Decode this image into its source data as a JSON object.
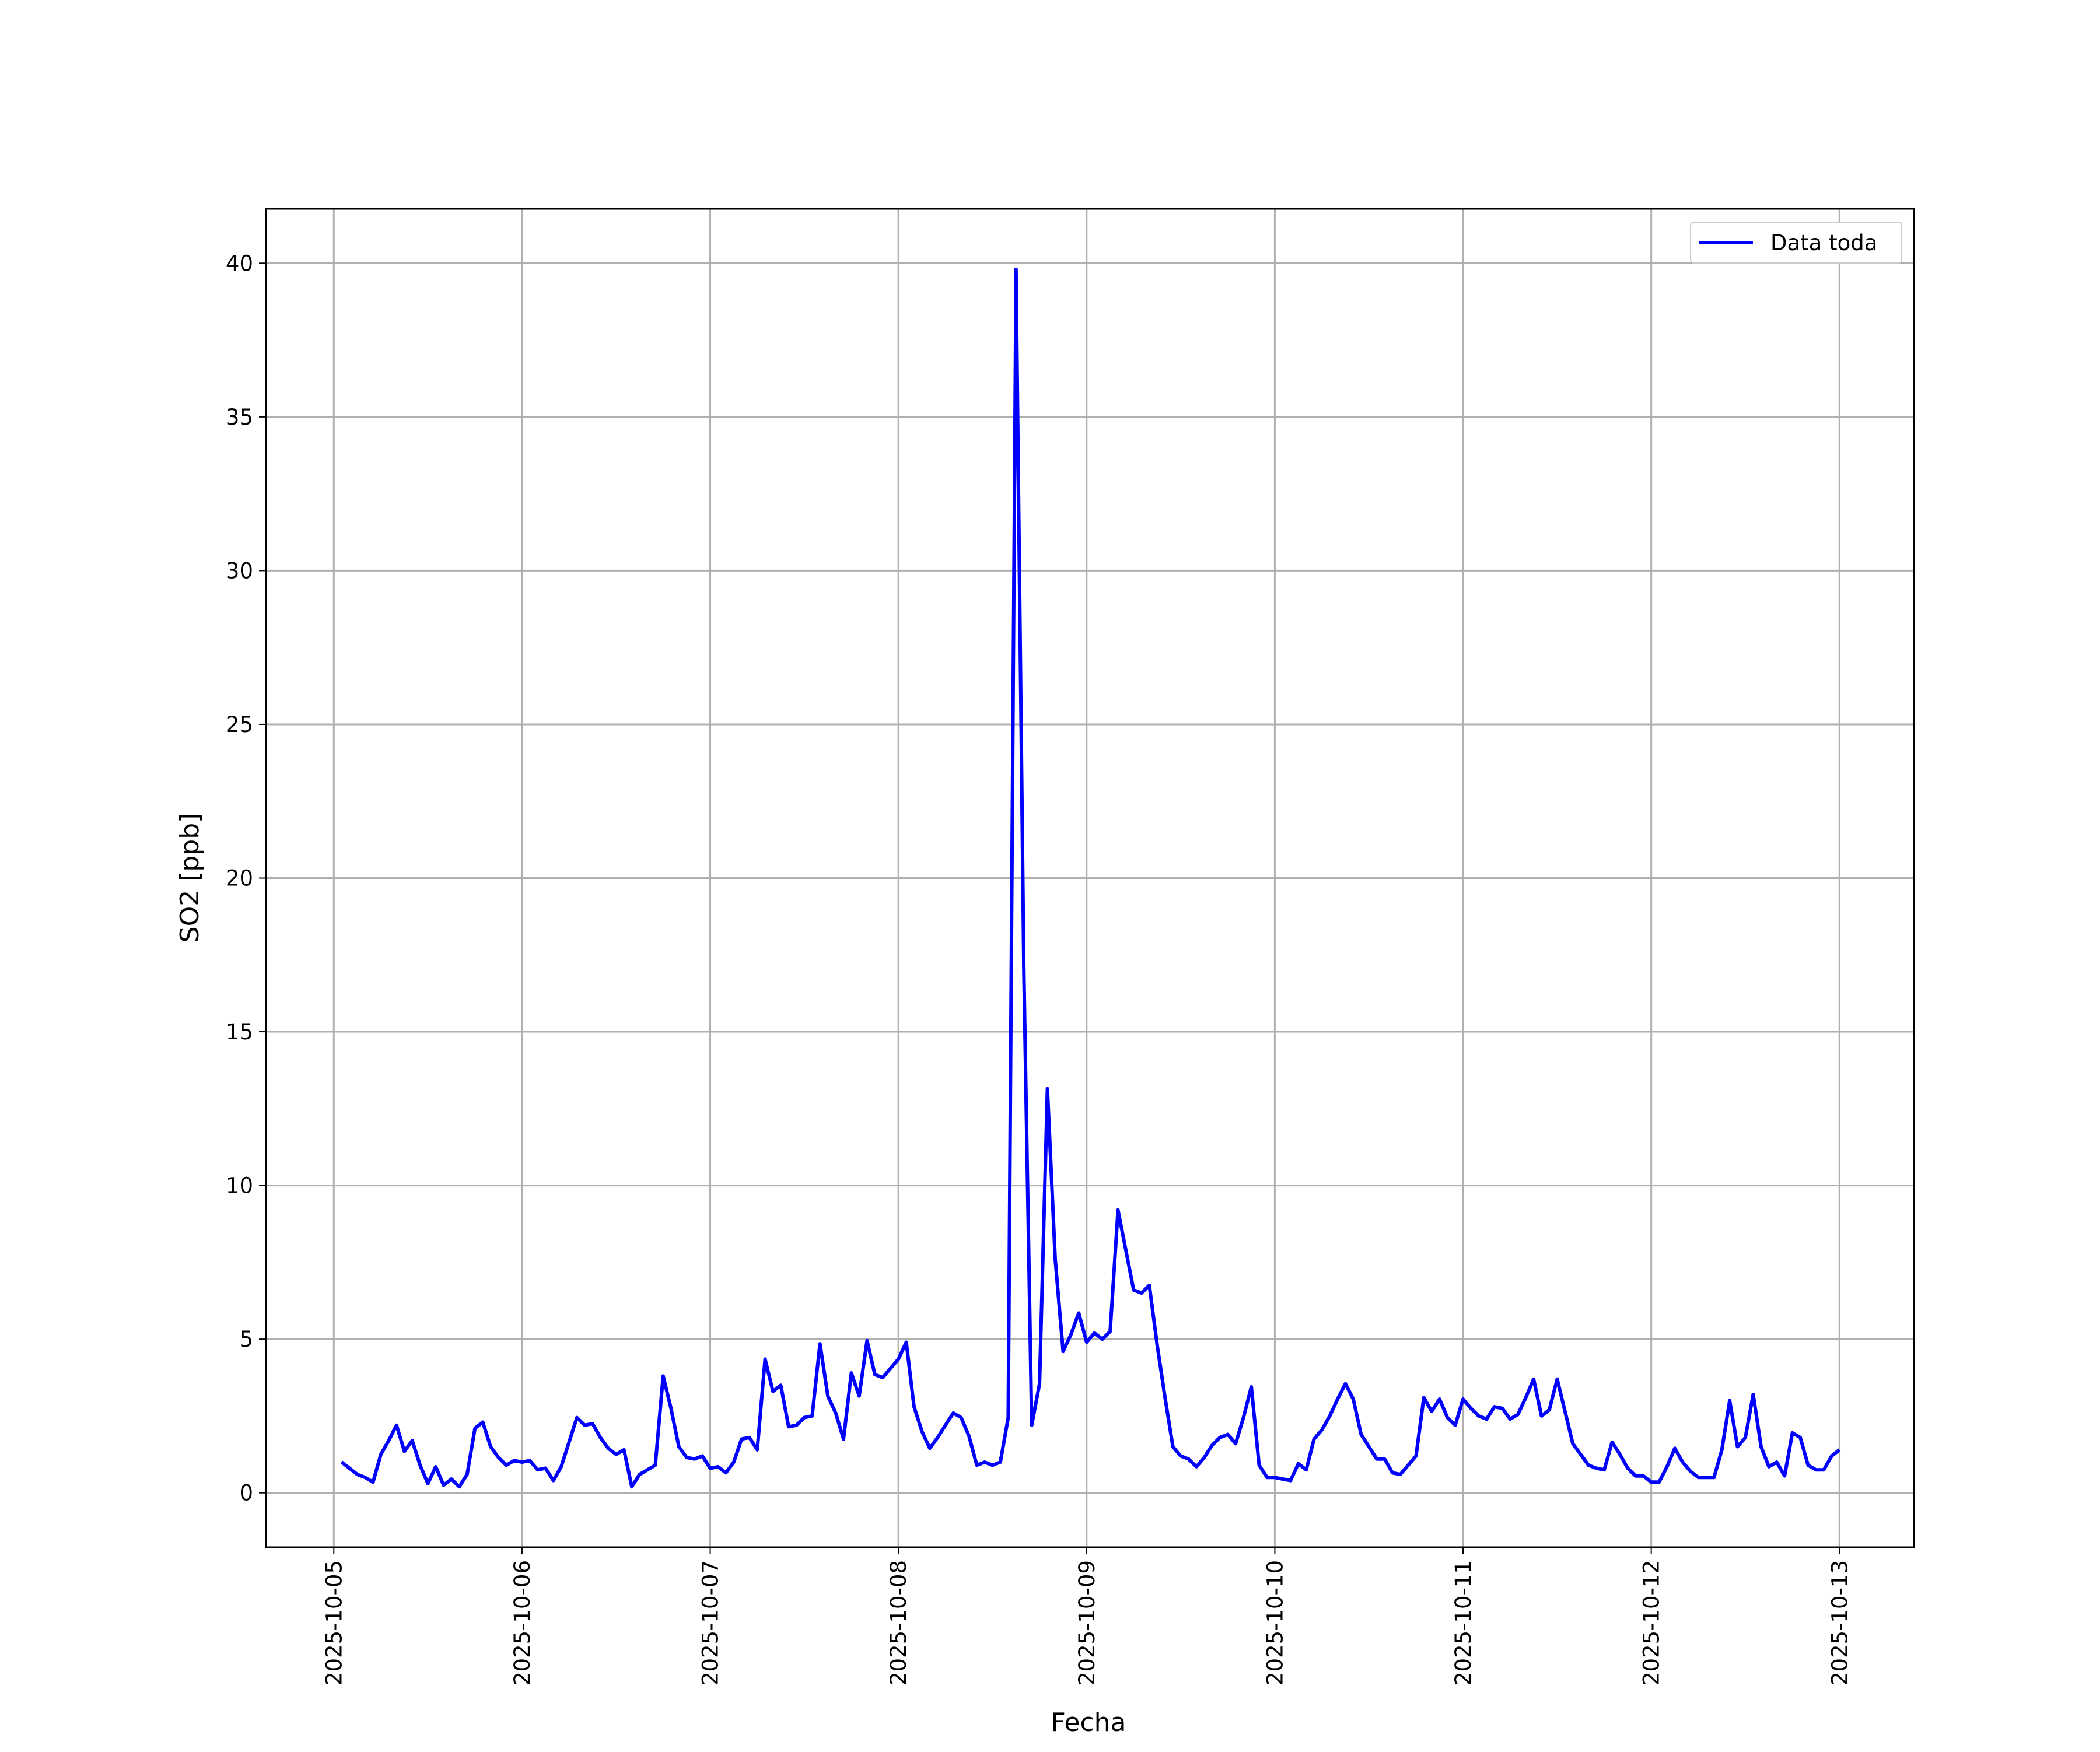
{
  "chart_data": {
    "type": "line",
    "xlabel": "Fecha",
    "ylabel": "SO2 [ppb]",
    "xlim": [
      "2025-10-04 15:21",
      "2025-10-13 09:30"
    ],
    "xticks": [
      "2025-10-05",
      "2025-10-06",
      "2025-10-07",
      "2025-10-08",
      "2025-10-09",
      "2025-10-10",
      "2025-10-11",
      "2025-10-12",
      "2025-10-13"
    ],
    "ylim": [
      -1.77,
      41.77
    ],
    "yticks": [
      0,
      5,
      10,
      15,
      20,
      25,
      30,
      35,
      40
    ],
    "grid": true,
    "legend": "upper right",
    "x": [
      "2025-10-05 01:00",
      "2025-10-05 02:00",
      "2025-10-05 03:00",
      "2025-10-05 04:00",
      "2025-10-05 05:00",
      "2025-10-05 06:00",
      "2025-10-05 07:00",
      "2025-10-05 08:00",
      "2025-10-05 09:00",
      "2025-10-05 10:00",
      "2025-10-05 11:00",
      "2025-10-05 12:00",
      "2025-10-05 13:00",
      "2025-10-05 14:00",
      "2025-10-05 15:00",
      "2025-10-05 16:00",
      "2025-10-05 17:00",
      "2025-10-05 18:00",
      "2025-10-05 19:00",
      "2025-10-05 20:00",
      "2025-10-05 21:00",
      "2025-10-05 22:00",
      "2025-10-05 23:00",
      "2025-10-06 00:00",
      "2025-10-06 01:00",
      "2025-10-06 02:00",
      "2025-10-06 03:00",
      "2025-10-06 04:00",
      "2025-10-06 05:00",
      "2025-10-06 06:00",
      "2025-10-06 07:00",
      "2025-10-06 08:00",
      "2025-10-06 09:00",
      "2025-10-06 10:00",
      "2025-10-06 11:00",
      "2025-10-06 12:00",
      "2025-10-06 13:00",
      "2025-10-06 14:00",
      "2025-10-06 15:00",
      "2025-10-06 16:00",
      "2025-10-06 17:00",
      "2025-10-06 18:00",
      "2025-10-06 19:00",
      "2025-10-06 20:00",
      "2025-10-06 21:00",
      "2025-10-06 22:00",
      "2025-10-06 23:00",
      "2025-10-07 00:00",
      "2025-10-07 01:00",
      "2025-10-07 02:00",
      "2025-10-07 03:00",
      "2025-10-07 04:00",
      "2025-10-07 05:00",
      "2025-10-07 06:00",
      "2025-10-07 07:00",
      "2025-10-07 08:00",
      "2025-10-07 09:00",
      "2025-10-07 10:00",
      "2025-10-07 11:00",
      "2025-10-07 12:00",
      "2025-10-07 13:00",
      "2025-10-07 14:00",
      "2025-10-07 15:00",
      "2025-10-07 16:00",
      "2025-10-07 17:00",
      "2025-10-07 18:00",
      "2025-10-07 19:00",
      "2025-10-07 20:00",
      "2025-10-07 21:00",
      "2025-10-07 22:00",
      "2025-10-07 23:00",
      "2025-10-08 00:00",
      "2025-10-08 01:00",
      "2025-10-08 02:00",
      "2025-10-08 03:00",
      "2025-10-08 04:00",
      "2025-10-08 05:00",
      "2025-10-08 06:00",
      "2025-10-08 07:00",
      "2025-10-08 08:00",
      "2025-10-08 09:00",
      "2025-10-08 10:00",
      "2025-10-08 11:00",
      "2025-10-08 12:00",
      "2025-10-08 13:00",
      "2025-10-08 14:00",
      "2025-10-08 15:00",
      "2025-10-08 16:00",
      "2025-10-08 17:00",
      "2025-10-08 18:00",
      "2025-10-08 19:00",
      "2025-10-08 20:00",
      "2025-10-08 21:00",
      "2025-10-08 22:00",
      "2025-10-08 23:00",
      "2025-10-09 00:00",
      "2025-10-09 01:00",
      "2025-10-09 02:00",
      "2025-10-09 03:00",
      "2025-10-09 04:00",
      "2025-10-09 05:00",
      "2025-10-09 06:00",
      "2025-10-09 07:00",
      "2025-10-09 08:00",
      "2025-10-09 09:00",
      "2025-10-09 10:00",
      "2025-10-09 11:00",
      "2025-10-09 12:00",
      "2025-10-09 13:00",
      "2025-10-09 14:00",
      "2025-10-09 15:00",
      "2025-10-09 16:00",
      "2025-10-09 17:00",
      "2025-10-09 18:00",
      "2025-10-09 19:00",
      "2025-10-09 20:00",
      "2025-10-09 21:00",
      "2025-10-09 22:00",
      "2025-10-09 23:00",
      "2025-10-10 00:00",
      "2025-10-10 01:00",
      "2025-10-10 02:00",
      "2025-10-10 03:00",
      "2025-10-10 04:00",
      "2025-10-10 05:00",
      "2025-10-10 06:00",
      "2025-10-10 07:00",
      "2025-10-10 08:00",
      "2025-10-10 09:00",
      "2025-10-10 10:00",
      "2025-10-10 11:00",
      "2025-10-10 12:00",
      "2025-10-10 13:00",
      "2025-10-10 14:00",
      "2025-10-10 15:00",
      "2025-10-10 16:00",
      "2025-10-10 17:00",
      "2025-10-10 18:00",
      "2025-10-10 19:00",
      "2025-10-10 20:00",
      "2025-10-10 21:00",
      "2025-10-10 22:00",
      "2025-10-10 23:00",
      "2025-10-11 00:00",
      "2025-10-11 01:00",
      "2025-10-11 02:00",
      "2025-10-11 03:00",
      "2025-10-11 04:00",
      "2025-10-11 05:00",
      "2025-10-11 06:00",
      "2025-10-11 07:00",
      "2025-10-11 08:00",
      "2025-10-11 09:00",
      "2025-10-11 10:00",
      "2025-10-11 11:00",
      "2025-10-11 12:00",
      "2025-10-11 13:00",
      "2025-10-11 14:00",
      "2025-10-11 15:00",
      "2025-10-11 16:00",
      "2025-10-11 17:00",
      "2025-10-11 18:00",
      "2025-10-11 19:00",
      "2025-10-11 20:00",
      "2025-10-11 21:00",
      "2025-10-11 22:00",
      "2025-10-11 23:00",
      "2025-10-12 00:00",
      "2025-10-12 01:00",
      "2025-10-12 02:00",
      "2025-10-12 03:00",
      "2025-10-12 04:00",
      "2025-10-12 05:00",
      "2025-10-12 06:00",
      "2025-10-12 07:00",
      "2025-10-12 08:00",
      "2025-10-12 09:00",
      "2025-10-12 10:00",
      "2025-10-12 11:00",
      "2025-10-12 12:00",
      "2025-10-12 13:00",
      "2025-10-12 14:00",
      "2025-10-12 15:00",
      "2025-10-12 16:00",
      "2025-10-12 17:00",
      "2025-10-12 18:00",
      "2025-10-12 19:00",
      "2025-10-12 20:00",
      "2025-10-12 21:00",
      "2025-10-12 22:00",
      "2025-10-12 23:00",
      "2025-10-13 00:00"
    ],
    "series": [
      {
        "name": "Data toda",
        "color": "#0000ff",
        "values": [
          1.0,
          0.8,
          0.6,
          0.5,
          0.35,
          1.25,
          1.7,
          2.2,
          1.35,
          1.7,
          0.9,
          0.3,
          0.85,
          0.25,
          0.45,
          0.2,
          0.6,
          2.1,
          2.3,
          1.5,
          1.15,
          0.9,
          1.05,
          1.0,
          1.05,
          0.75,
          0.8,
          0.4,
          0.85,
          1.65,
          2.45,
          2.2,
          2.25,
          1.8,
          1.45,
          1.25,
          1.4,
          0.2,
          0.6,
          0.75,
          0.9,
          3.8,
          2.75,
          1.5,
          1.15,
          1.1,
          1.2,
          0.8,
          0.85,
          0.65,
          1.0,
          1.75,
          1.8,
          1.4,
          4.35,
          3.3,
          3.5,
          2.15,
          2.2,
          2.45,
          2.5,
          4.85,
          3.15,
          2.6,
          1.75,
          3.9,
          3.15,
          4.95,
          3.85,
          3.75,
          4.05,
          4.35,
          4.9,
          2.8,
          2.0,
          1.45,
          1.8,
          2.2,
          2.6,
          2.45,
          1.85,
          0.9,
          1.0,
          0.9,
          1.0,
          2.45,
          39.8,
          17.0,
          2.2,
          3.55,
          13.15,
          7.6,
          4.6,
          5.15,
          5.85,
          4.9,
          5.2,
          5.0,
          5.25,
          9.2,
          7.9,
          6.6,
          6.5,
          6.75,
          4.8,
          3.1,
          1.5,
          1.2,
          1.1,
          0.85,
          1.15,
          1.55,
          1.8,
          1.9,
          1.6,
          2.45,
          3.45,
          0.9,
          0.5,
          0.5,
          0.45,
          0.4,
          0.95,
          0.75,
          1.75,
          2.05,
          2.5,
          3.05,
          3.55,
          3.05,
          1.9,
          1.5,
          1.1,
          1.1,
          0.65,
          0.6,
          0.9,
          1.2,
          3.1,
          2.65,
          3.05,
          2.45,
          2.2,
          3.05,
          2.75,
          2.5,
          2.4,
          2.8,
          2.75,
          2.4,
          2.55,
          3.1,
          3.7,
          2.5,
          2.7,
          3.7,
          2.65,
          1.6,
          1.25,
          0.9,
          0.8,
          0.75,
          1.65,
          1.25,
          0.8,
          0.55,
          0.55,
          0.35,
          0.35,
          0.85,
          1.45,
          1.0,
          0.7,
          0.5,
          0.5,
          0.5,
          1.4,
          3.0,
          1.5,
          1.8,
          3.2,
          1.5,
          0.85,
          1.0,
          0.55,
          1.95,
          1.8,
          0.9,
          0.75,
          0.75,
          1.2,
          1.4
        ]
      }
    ]
  }
}
